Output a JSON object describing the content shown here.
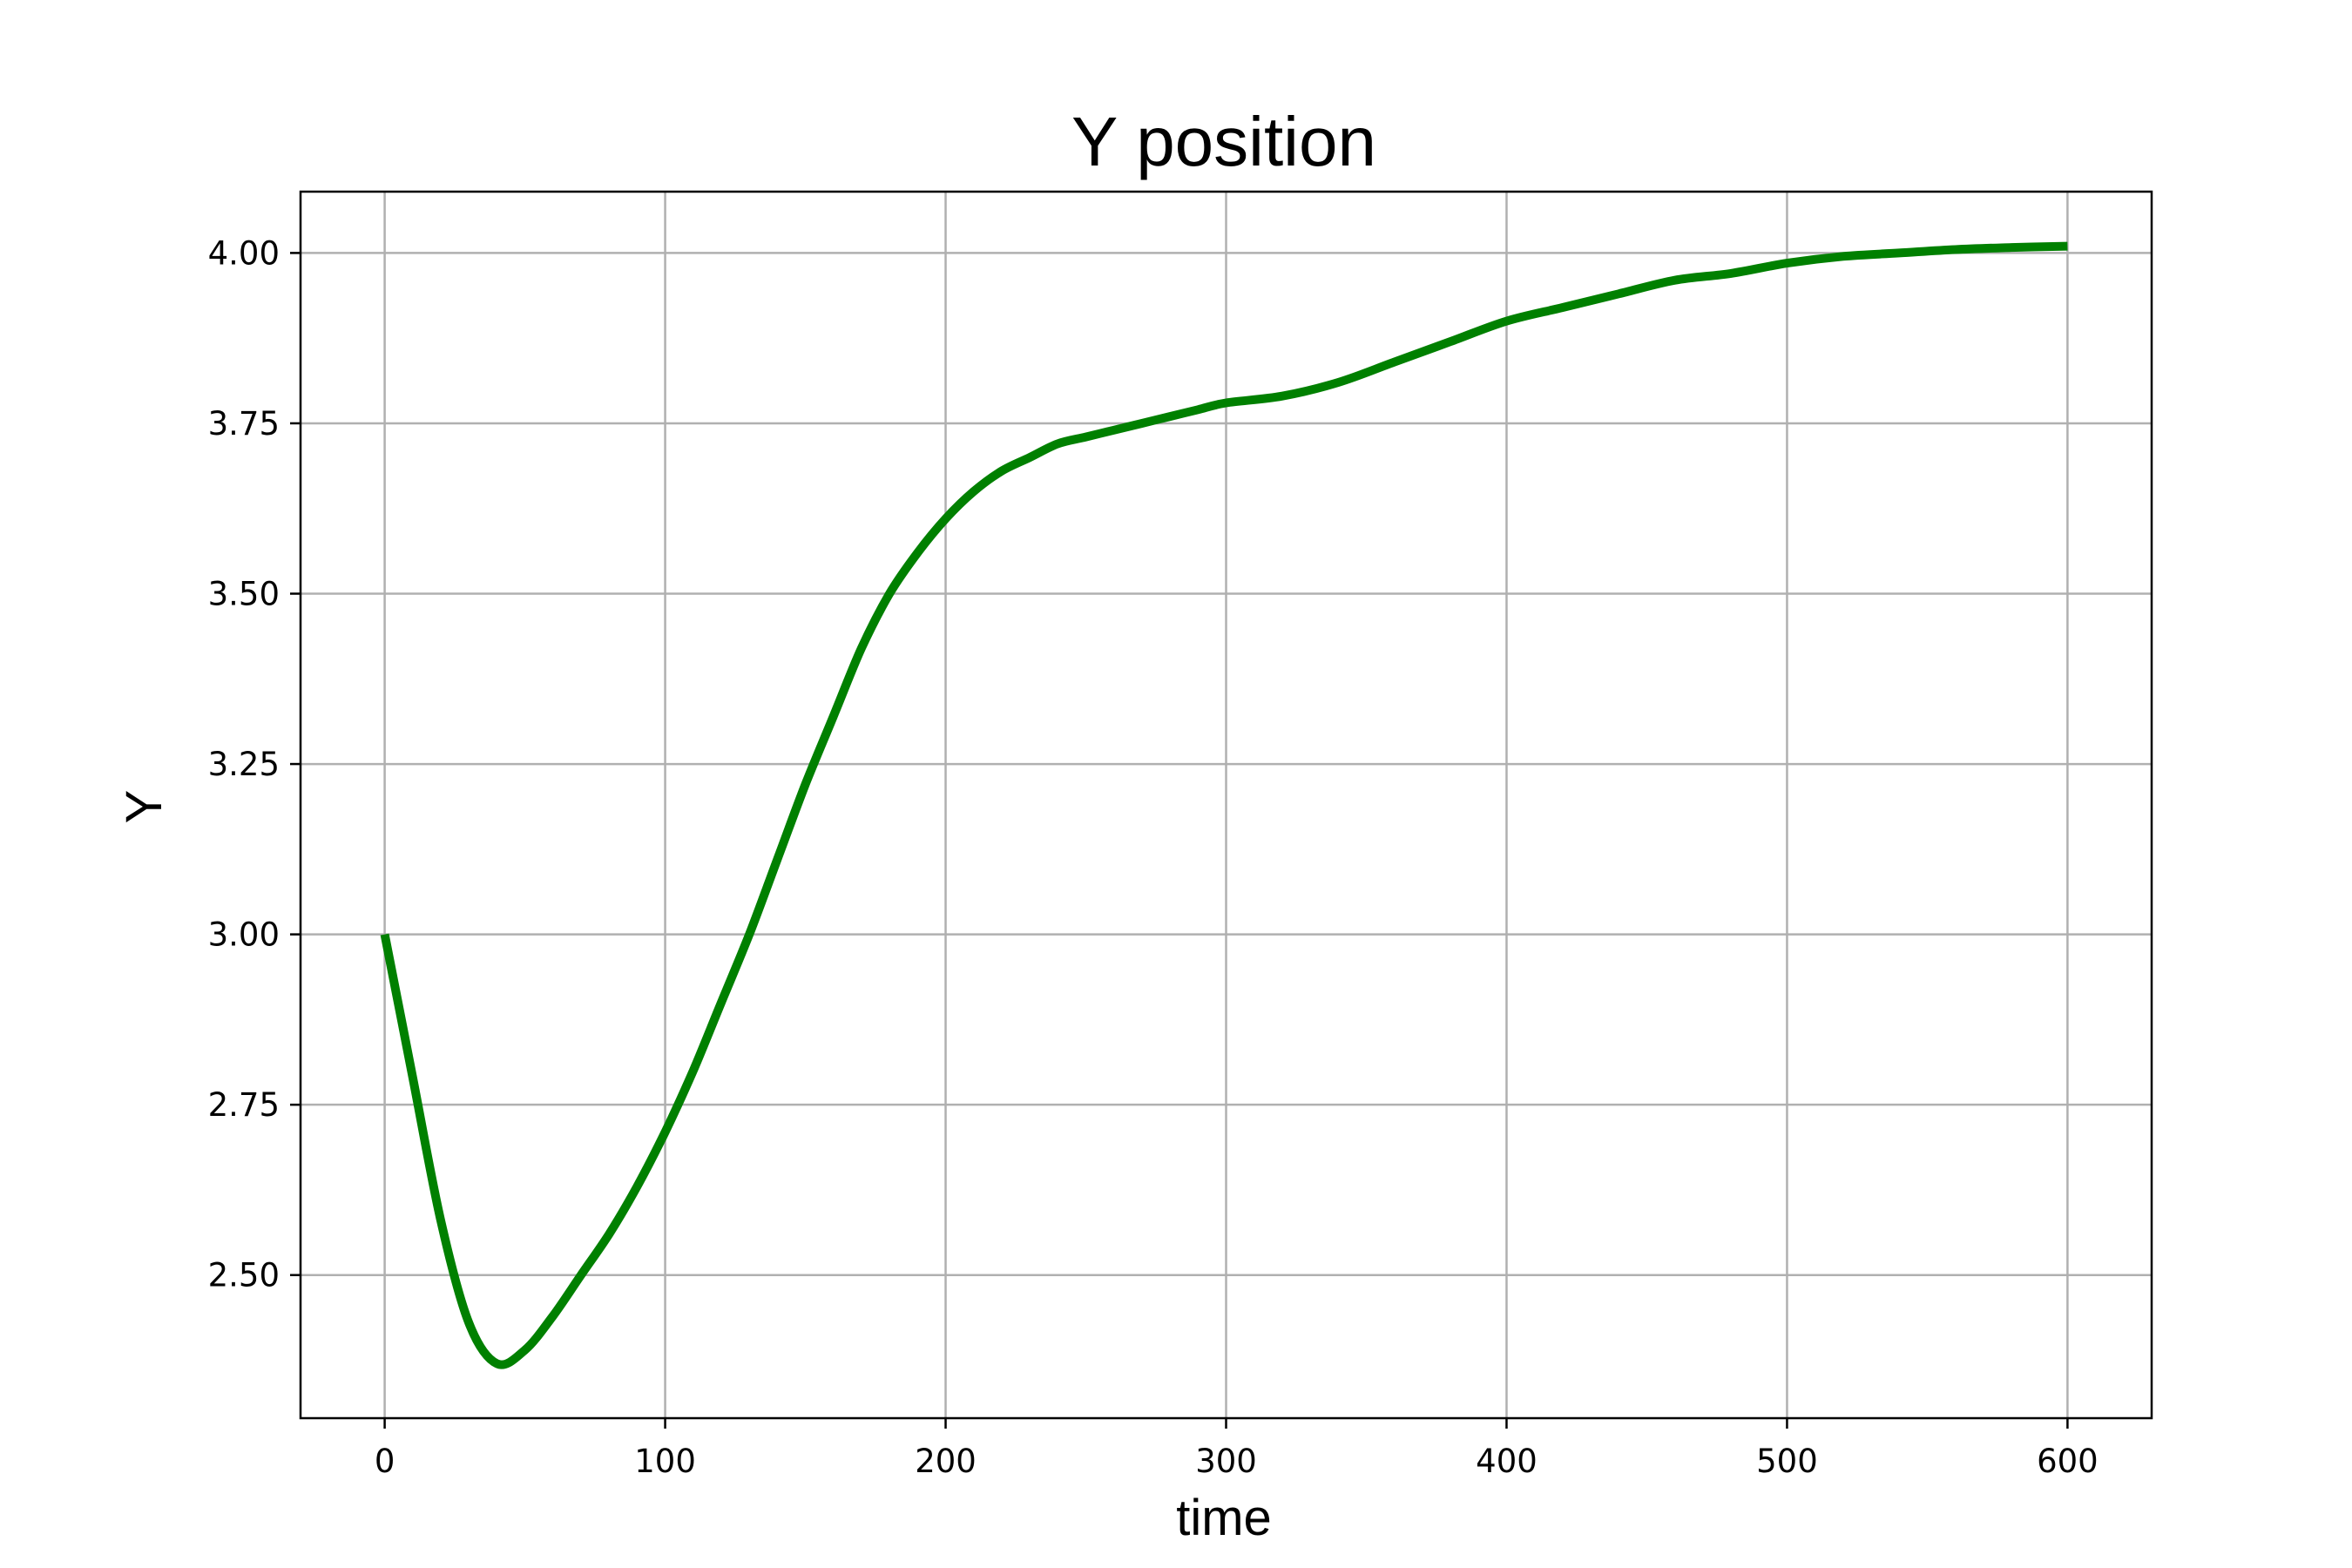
{
  "chart_data": {
    "type": "line",
    "title": "Y position",
    "xlabel": "time",
    "ylabel": "Y",
    "xlim": [
      -30,
      630
    ],
    "ylim": [
      2.29,
      4.09
    ],
    "x_ticks": [
      0,
      100,
      200,
      300,
      400,
      500,
      600
    ],
    "x_tick_labels": [
      "0",
      "100",
      "200",
      "300",
      "400",
      "500",
      "600"
    ],
    "y_ticks": [
      2.5,
      2.75,
      3.0,
      3.25,
      3.5,
      3.75,
      4.0
    ],
    "y_tick_labels": [
      "2.50",
      "2.75",
      "3.00",
      "3.25",
      "3.50",
      "3.75",
      "4.00"
    ],
    "grid": true,
    "series": [
      {
        "color": "#008000",
        "x": [
          0,
          10,
          20,
          30,
          40,
          50,
          60,
          70,
          80,
          90,
          100,
          110,
          120,
          130,
          140,
          150,
          160,
          170,
          180,
          190,
          200,
          210,
          220,
          230,
          240,
          250,
          260,
          270,
          280,
          290,
          300,
          320,
          340,
          360,
          380,
          400,
          420,
          440,
          460,
          480,
          500,
          520,
          540,
          560,
          580,
          600
        ],
        "y": [
          3.0,
          2.79,
          2.58,
          2.43,
          2.37,
          2.39,
          2.44,
          2.5,
          2.56,
          2.63,
          2.71,
          2.8,
          2.9,
          3.0,
          3.11,
          3.22,
          3.32,
          3.42,
          3.5,
          3.56,
          3.61,
          3.65,
          3.68,
          3.7,
          3.72,
          3.73,
          3.74,
          3.75,
          3.76,
          3.77,
          3.78,
          3.79,
          3.81,
          3.84,
          3.87,
          3.9,
          3.92,
          3.94,
          3.96,
          3.97,
          3.985,
          3.995,
          4.0,
          4.005,
          4.008,
          4.01
        ]
      }
    ]
  }
}
